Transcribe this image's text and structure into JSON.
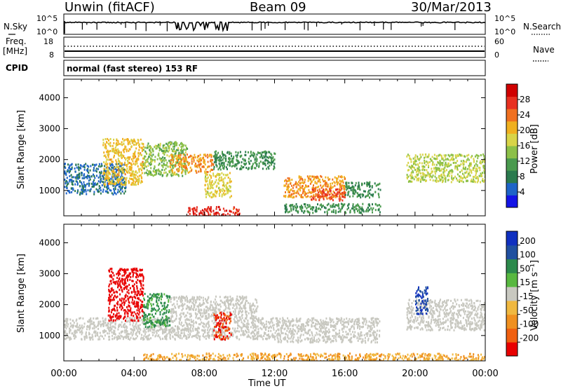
{
  "header": {
    "station": "Unwin (fitACF)",
    "beam": "Beam 09",
    "date": "30/Mar/2013"
  },
  "noise_panel": {
    "left_label": "N.Sky",
    "right_label": "N.Search",
    "left_ticks": [
      "10^5",
      "10^0"
    ],
    "right_ticks": [
      "10^5",
      "10^0"
    ]
  },
  "freq_panel": {
    "left_label_1": "Freq.",
    "left_label_2": "[MHz]",
    "left_ticks": [
      "18",
      "8"
    ],
    "right_label": "Nave",
    "right_ticks": [
      "60",
      "0"
    ]
  },
  "cpid": {
    "label": "CPID",
    "text": "normal (fast stereo) 153 RF"
  },
  "axes": {
    "ylabel": "Slant Range [km]",
    "xlabel": "Time UT",
    "yticks": [
      "1000",
      "2000",
      "3000",
      "4000"
    ],
    "xticks": [
      "00:00",
      "04:00",
      "08:00",
      "12:00",
      "16:00",
      "20:00",
      "00:00"
    ]
  },
  "power_colorbar": {
    "label": "Power [dB]",
    "ticks": [
      "4",
      "8",
      "12",
      "16",
      "20",
      "24",
      "28"
    ],
    "colors": [
      "#1414e6",
      "#1e64c8",
      "#2a7a4e",
      "#4a9a4e",
      "#8cc048",
      "#d8d448",
      "#f0b020",
      "#f07020",
      "#e83020",
      "#d00000"
    ]
  },
  "velocity_colorbar": {
    "label": "Velocity [m s⁻¹]",
    "ticks": [
      "200",
      "100",
      "50",
      "15",
      "-15",
      "-50",
      "-100",
      "-200"
    ],
    "colors": [
      "#1030c0",
      "#2050a0",
      "#2c8a4c",
      "#58b840",
      "#c8c8c0",
      "#f0b840",
      "#f09020",
      "#f06010",
      "#e80000"
    ]
  },
  "chart_data": [
    {
      "type": "heatmap",
      "title": "Power",
      "xlabel": "Time UT",
      "ylabel": "Slant Range [km]",
      "xlim": [
        0,
        24
      ],
      "ylim": [
        180,
        4600
      ],
      "colorbar_label": "Power [dB]",
      "colorbar_range": [
        0,
        32
      ],
      "regions": [
        {
          "t": [
            0,
            3.5
          ],
          "r": [
            900,
            1900
          ],
          "value": 6
        },
        {
          "t": [
            2.2,
            4.5
          ],
          "r": [
            1200,
            2700
          ],
          "value": 20
        },
        {
          "t": [
            4.5,
            7
          ],
          "r": [
            1500,
            2600
          ],
          "value": 14
        },
        {
          "t": [
            6,
            8.5
          ],
          "r": [
            1600,
            2200
          ],
          "value": 22
        },
        {
          "t": [
            8,
            9.5
          ],
          "r": [
            800,
            1600
          ],
          "value": 18
        },
        {
          "t": [
            8.5,
            12
          ],
          "r": [
            1700,
            2300
          ],
          "value": 10
        },
        {
          "t": [
            12.5,
            16
          ],
          "r": [
            800,
            1500
          ],
          "value": 22
        },
        {
          "t": [
            14,
            16
          ],
          "r": [
            700,
            1100
          ],
          "value": 26
        },
        {
          "t": [
            16,
            18
          ],
          "r": [
            800,
            1300
          ],
          "value": 10
        },
        {
          "t": [
            19.5,
            24
          ],
          "r": [
            1300,
            2200
          ],
          "value": 16
        },
        {
          "t": [
            7,
            10
          ],
          "r": [
            200,
            500
          ],
          "value": 28
        },
        {
          "t": [
            12.5,
            18
          ],
          "r": [
            300,
            600
          ],
          "value": 10
        }
      ]
    },
    {
      "type": "heatmap",
      "title": "Velocity",
      "xlabel": "Time UT",
      "ylabel": "Slant Range [km]",
      "xlim": [
        0,
        24
      ],
      "ylim": [
        180,
        4600
      ],
      "colorbar_label": "Velocity [m s⁻¹]",
      "colorbar_range": [
        -200,
        200
      ],
      "regions": [
        {
          "t": [
            0,
            12
          ],
          "r": [
            900,
            1600
          ],
          "value": 0
        },
        {
          "t": [
            2.5,
            4.5
          ],
          "r": [
            1500,
            3200
          ],
          "value": -200
        },
        {
          "t": [
            4.5,
            6
          ],
          "r": [
            1300,
            2400
          ],
          "value": 40
        },
        {
          "t": [
            6,
            11
          ],
          "r": [
            1600,
            2300
          ],
          "value": 0
        },
        {
          "t": [
            8.5,
            9.5
          ],
          "r": [
            900,
            1800
          ],
          "value": -150
        },
        {
          "t": [
            12,
            18
          ],
          "r": [
            800,
            1600
          ],
          "value": 0
        },
        {
          "t": [
            19.5,
            24
          ],
          "r": [
            1200,
            2200
          ],
          "value": 0
        },
        {
          "t": [
            4.5,
            24
          ],
          "r": [
            200,
            450
          ],
          "value": -30
        },
        {
          "t": [
            20,
            20.7
          ],
          "r": [
            1700,
            2600
          ],
          "value": 150
        }
      ]
    }
  ]
}
